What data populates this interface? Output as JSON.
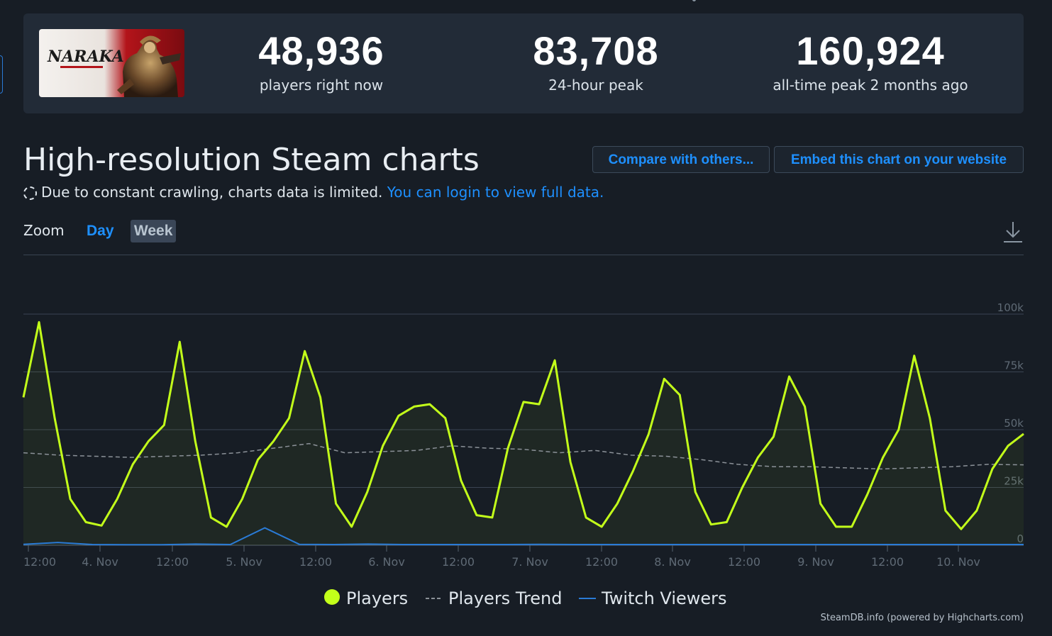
{
  "header": {
    "stats": [
      {
        "value": "48,936",
        "label": "players right now"
      },
      {
        "value": "83,708",
        "label": "24-hour peak"
      },
      {
        "value": "160,924",
        "label": "all-time peak 2 months ago"
      }
    ],
    "game_logo_text": "NARAKA"
  },
  "section": {
    "title": "High-resolution Steam charts",
    "compare_button": "Compare with others...",
    "embed_button": "Embed this chart on your website",
    "notice_text": "Due to constant crawling, charts data is limited.",
    "notice_link": "You can login to view full data."
  },
  "zoom": {
    "label": "Zoom",
    "options": [
      "Day",
      "Week"
    ],
    "selected": "Week"
  },
  "chart_data": {
    "type": "line",
    "x_start": "3. Nov 12:00",
    "x_interval_hours": 3,
    "x_tick_labels": [
      "12:00",
      "4. Nov",
      "12:00",
      "5. Nov",
      "12:00",
      "6. Nov",
      "12:00",
      "7. Nov",
      "12:00",
      "8. Nov",
      "12:00",
      "9. Nov",
      "12:00",
      "10. Nov"
    ],
    "y_tick_labels": [
      "0",
      "25k",
      "50k",
      "75k",
      "100k"
    ],
    "ylim": [
      0,
      100000
    ],
    "grid": true,
    "legend_position": "bottom",
    "series": [
      {
        "name": "Players",
        "style": "line-area",
        "color": "#c3ff1a",
        "values": [
          64000,
          96500,
          55000,
          20000,
          10000,
          8500,
          20000,
          35000,
          45000,
          52000,
          88000,
          45000,
          12000,
          8000,
          20000,
          37000,
          45000,
          55000,
          84000,
          64000,
          18000,
          8000,
          23000,
          43000,
          56000,
          60000,
          61000,
          55000,
          28000,
          13000,
          12000,
          42000,
          62000,
          61000,
          80000,
          36000,
          12000,
          8000,
          18000,
          32000,
          48000,
          72000,
          65000,
          23000,
          9000,
          10000,
          25000,
          38000,
          47000,
          73000,
          60000,
          18000,
          8000,
          8000,
          22000,
          38000,
          50000,
          82000,
          55000,
          15000,
          7000,
          15000,
          33000,
          43000,
          48200
        ]
      },
      {
        "name": "Players Trend",
        "style": "dashed",
        "color": "#8b9198",
        "values": [
          40000,
          39000,
          38500,
          38000,
          38500,
          39000,
          40000,
          42000,
          44000,
          40000,
          40500,
          41000,
          43000,
          42000,
          41500,
          40000,
          41000,
          39000,
          38500,
          37000,
          35000,
          34000,
          34000,
          33500,
          33000,
          33500,
          34000,
          35000,
          34800
        ]
      },
      {
        "name": "Twitch Viewers",
        "style": "line",
        "color": "#2a7bd6",
        "values": [
          400,
          1200,
          300,
          200,
          200,
          500,
          300,
          7500,
          400,
          300,
          500,
          300,
          300,
          300,
          300,
          400,
          300,
          300,
          300,
          300,
          300,
          300,
          300,
          300,
          300,
          300,
          300,
          300,
          300,
          300
        ]
      }
    ]
  },
  "credits": "SteamDB.info (powered by Highcharts.com)",
  "colors": {
    "background": "#171d25",
    "card": "#222b37",
    "accent": "#1e90ff",
    "players": "#c3ff1a",
    "twitch": "#2a7bd6"
  }
}
